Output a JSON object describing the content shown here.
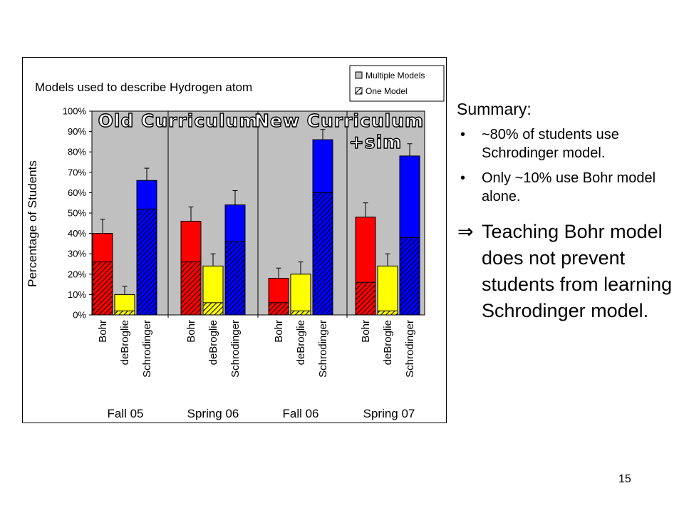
{
  "chart_data": {
    "type": "bar",
    "title": "Models used to describe Hydrogen atom",
    "ylabel": "Percentage of Students",
    "ylim": [
      0,
      100
    ],
    "yticks": [
      "0%",
      "10%",
      "20%",
      "30%",
      "40%",
      "50%",
      "60%",
      "70%",
      "80%",
      "90%",
      "100%"
    ],
    "grid": false,
    "legend_position": "top-right",
    "groups": [
      "Fall 05",
      "Spring 06",
      "Fall 06",
      "Spring 07"
    ],
    "categories": [
      "Bohr",
      "deBroglie",
      "Schrodinger"
    ],
    "series": [
      {
        "name": "One Model",
        "pattern": "hatched",
        "values": [
          [
            26,
            2,
            52
          ],
          [
            26,
            6,
            36
          ],
          [
            6,
            2,
            60
          ],
          [
            16,
            2,
            38
          ]
        ]
      },
      {
        "name": "Multiple Models",
        "pattern": "solid",
        "values": [
          [
            14,
            8,
            14
          ],
          [
            20,
            18,
            18
          ],
          [
            12,
            18,
            26
          ],
          [
            32,
            22,
            40
          ]
        ]
      }
    ],
    "totals": [
      [
        40,
        10,
        66
      ],
      [
        46,
        24,
        54
      ],
      [
        18,
        20,
        86
      ],
      [
        48,
        24,
        78
      ]
    ],
    "error_top": [
      [
        47,
        14,
        72
      ],
      [
        53,
        30,
        61
      ],
      [
        23,
        26,
        91
      ],
      [
        55,
        30,
        84
      ]
    ],
    "bar_colors": {
      "Bohr": "#ff0000",
      "deBroglie": "#ffff00",
      "Schrodinger": "#0000ff"
    },
    "colors": {
      "plot_background": "#c0c0c0",
      "hatch": "#000000",
      "annotation_fill": "#ffffff",
      "annotation_stroke": "#000000"
    },
    "annotations": [
      "Old Curriculum",
      "New Curriculum",
      "+sim"
    ]
  },
  "summary": {
    "title": "Summary:",
    "bullets": [
      "~80% of students use Schrodinger model.",
      "Only ~10% use Bohr model alone."
    ],
    "implies_symbol": "⇒",
    "conclusion": "Teaching Bohr model does not prevent students from learning Schrodinger model."
  },
  "page_number": "15"
}
